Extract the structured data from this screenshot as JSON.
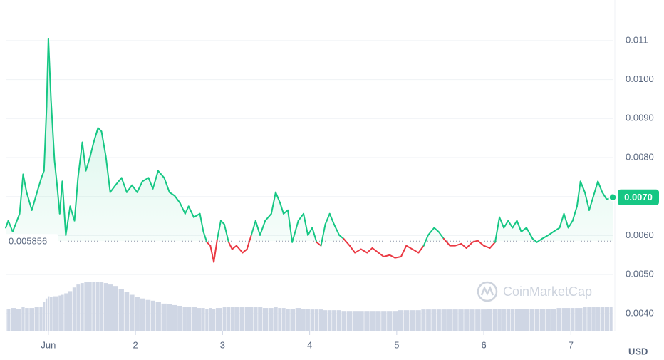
{
  "chart_data": {
    "type": "line",
    "x": [
      0.51,
      0.54,
      0.59,
      0.67,
      0.71,
      0.75,
      0.81,
      0.87,
      0.92,
      0.95,
      0.98,
      1.0,
      1.03,
      1.07,
      1.1,
      1.13,
      1.16,
      1.2,
      1.25,
      1.3,
      1.34,
      1.39,
      1.43,
      1.48,
      1.52,
      1.57,
      1.61,
      1.66,
      1.71,
      1.77,
      1.84,
      1.9,
      1.96,
      2.02,
      2.08,
      2.15,
      2.2,
      2.26,
      2.33,
      2.39,
      2.45,
      2.51,
      2.57,
      2.61,
      2.67,
      2.74,
      2.78,
      2.82,
      2.86,
      2.9,
      2.94,
      2.98,
      3.02,
      3.07,
      3.11,
      3.16,
      3.23,
      3.28,
      3.33,
      3.38,
      3.43,
      3.49,
      3.56,
      3.61,
      3.66,
      3.7,
      3.75,
      3.8,
      3.87,
      3.93,
      3.98,
      4.03,
      4.08,
      4.13,
      4.18,
      4.23,
      4.28,
      4.34,
      4.39,
      4.46,
      4.52,
      4.59,
      4.66,
      4.72,
      4.79,
      4.85,
      4.92,
      4.98,
      5.05,
      5.11,
      5.18,
      5.25,
      5.31,
      5.36,
      5.43,
      5.48,
      5.54,
      5.61,
      5.67,
      5.74,
      5.8,
      5.87,
      5.93,
      6.0,
      6.07,
      6.13,
      6.18,
      6.23,
      6.28,
      6.33,
      6.38,
      6.43,
      6.49,
      6.56,
      6.61,
      6.67,
      6.74,
      6.8,
      6.87,
      6.92,
      6.97,
      7.02,
      7.07,
      7.11,
      7.16,
      7.21,
      7.26,
      7.31,
      7.36,
      7.41,
      7.48
    ],
    "values": [
      0.0062,
      0.00638,
      0.0061,
      0.00656,
      0.00757,
      0.00711,
      0.00665,
      0.00711,
      0.00748,
      0.00766,
      0.00931,
      0.01104,
      0.00949,
      0.00793,
      0.00729,
      0.00656,
      0.00739,
      0.00601,
      0.00675,
      0.00638,
      0.00748,
      0.00839,
      0.00766,
      0.00803,
      0.00839,
      0.00876,
      0.00867,
      0.00803,
      0.00711,
      0.00729,
      0.00748,
      0.00711,
      0.00729,
      0.00711,
      0.00739,
      0.00748,
      0.0072,
      0.00766,
      0.00748,
      0.00711,
      0.00702,
      0.00684,
      0.00656,
      0.00675,
      0.00647,
      0.00656,
      0.0061,
      0.00583,
      0.00574,
      0.00532,
      0.00592,
      0.00638,
      0.00629,
      0.00583,
      0.00565,
      0.00574,
      0.00556,
      0.00565,
      0.00601,
      0.00638,
      0.00601,
      0.00638,
      0.00656,
      0.00711,
      0.00684,
      0.00656,
      0.00665,
      0.00583,
      0.00638,
      0.00656,
      0.00601,
      0.0062,
      0.00583,
      0.00574,
      0.00629,
      0.00656,
      0.00629,
      0.00601,
      0.00592,
      0.00574,
      0.00556,
      0.00565,
      0.00556,
      0.00568,
      0.00556,
      0.00546,
      0.0055,
      0.00543,
      0.00546,
      0.00574,
      0.00565,
      0.00556,
      0.00574,
      0.00601,
      0.0062,
      0.0061,
      0.00592,
      0.00574,
      0.00574,
      0.00579,
      0.00568,
      0.00583,
      0.00587,
      0.00574,
      0.00568,
      0.00583,
      0.00647,
      0.0062,
      0.00638,
      0.0062,
      0.00638,
      0.0061,
      0.0062,
      0.00592,
      0.00583,
      0.00592,
      0.00601,
      0.0061,
      0.0062,
      0.00656,
      0.0062,
      0.00638,
      0.00675,
      0.00739,
      0.00711,
      0.00665,
      0.00702,
      0.00739,
      0.00711,
      0.00693,
      0.00698
    ],
    "volume": [
      30,
      31,
      32,
      31,
      33,
      32,
      32,
      33,
      34,
      40,
      45,
      48,
      47,
      48,
      48,
      49,
      50,
      52,
      55,
      60,
      64,
      66,
      67,
      68,
      68,
      68,
      67,
      66,
      64,
      62,
      58,
      54,
      50,
      47,
      45,
      43,
      42,
      40,
      38,
      37,
      36,
      35,
      34,
      33,
      33,
      32,
      32,
      31,
      32,
      31,
      32,
      32,
      33,
      33,
      33,
      33,
      33,
      34,
      34,
      33,
      33,
      32,
      32,
      33,
      32,
      32,
      31,
      31,
      32,
      31,
      31,
      30,
      30,
      30,
      29,
      29,
      29,
      29,
      28,
      28,
      28,
      28,
      28,
      28,
      28,
      28,
      28,
      28,
      29,
      29,
      29,
      29,
      30,
      30,
      30,
      30,
      30,
      30,
      30,
      30,
      30,
      30,
      30,
      30,
      31,
      31,
      31,
      31,
      31,
      31,
      31,
      31,
      31,
      31,
      31,
      31,
      31,
      31,
      32,
      32,
      32,
      32,
      32,
      32,
      33,
      33,
      33,
      33,
      33,
      34,
      34
    ],
    "up_color": "#16c784",
    "down_color": "#ea3943",
    "volume_color": "#cfd6e4",
    "baseline": 0.005856,
    "current_price": {
      "value": 0.00698,
      "label": "0.0070"
    },
    "xlim": [
      0.51,
      7.48
    ],
    "xticks": [
      {
        "value": 1,
        "label": "Jun"
      },
      2,
      3,
      4,
      5,
      6,
      7
    ],
    "ylim": [
      0.00354,
      0.01204
    ],
    "yticks": [
      {
        "value": 0.004,
        "label": "0.0040"
      },
      {
        "value": 0.005,
        "label": "0.0050"
      },
      {
        "value": 0.006,
        "label": "0.0060"
      },
      {
        "value": 0.007,
        "label": "0.0070"
      },
      {
        "value": 0.008,
        "label": "0.0080"
      },
      {
        "value": 0.009,
        "label": "0.0090"
      },
      {
        "value": 0.01,
        "label": "0.0100"
      },
      0.011
    ],
    "y_axis_label": "USD",
    "watermark": "CoinMarketCap",
    "grid": true
  }
}
